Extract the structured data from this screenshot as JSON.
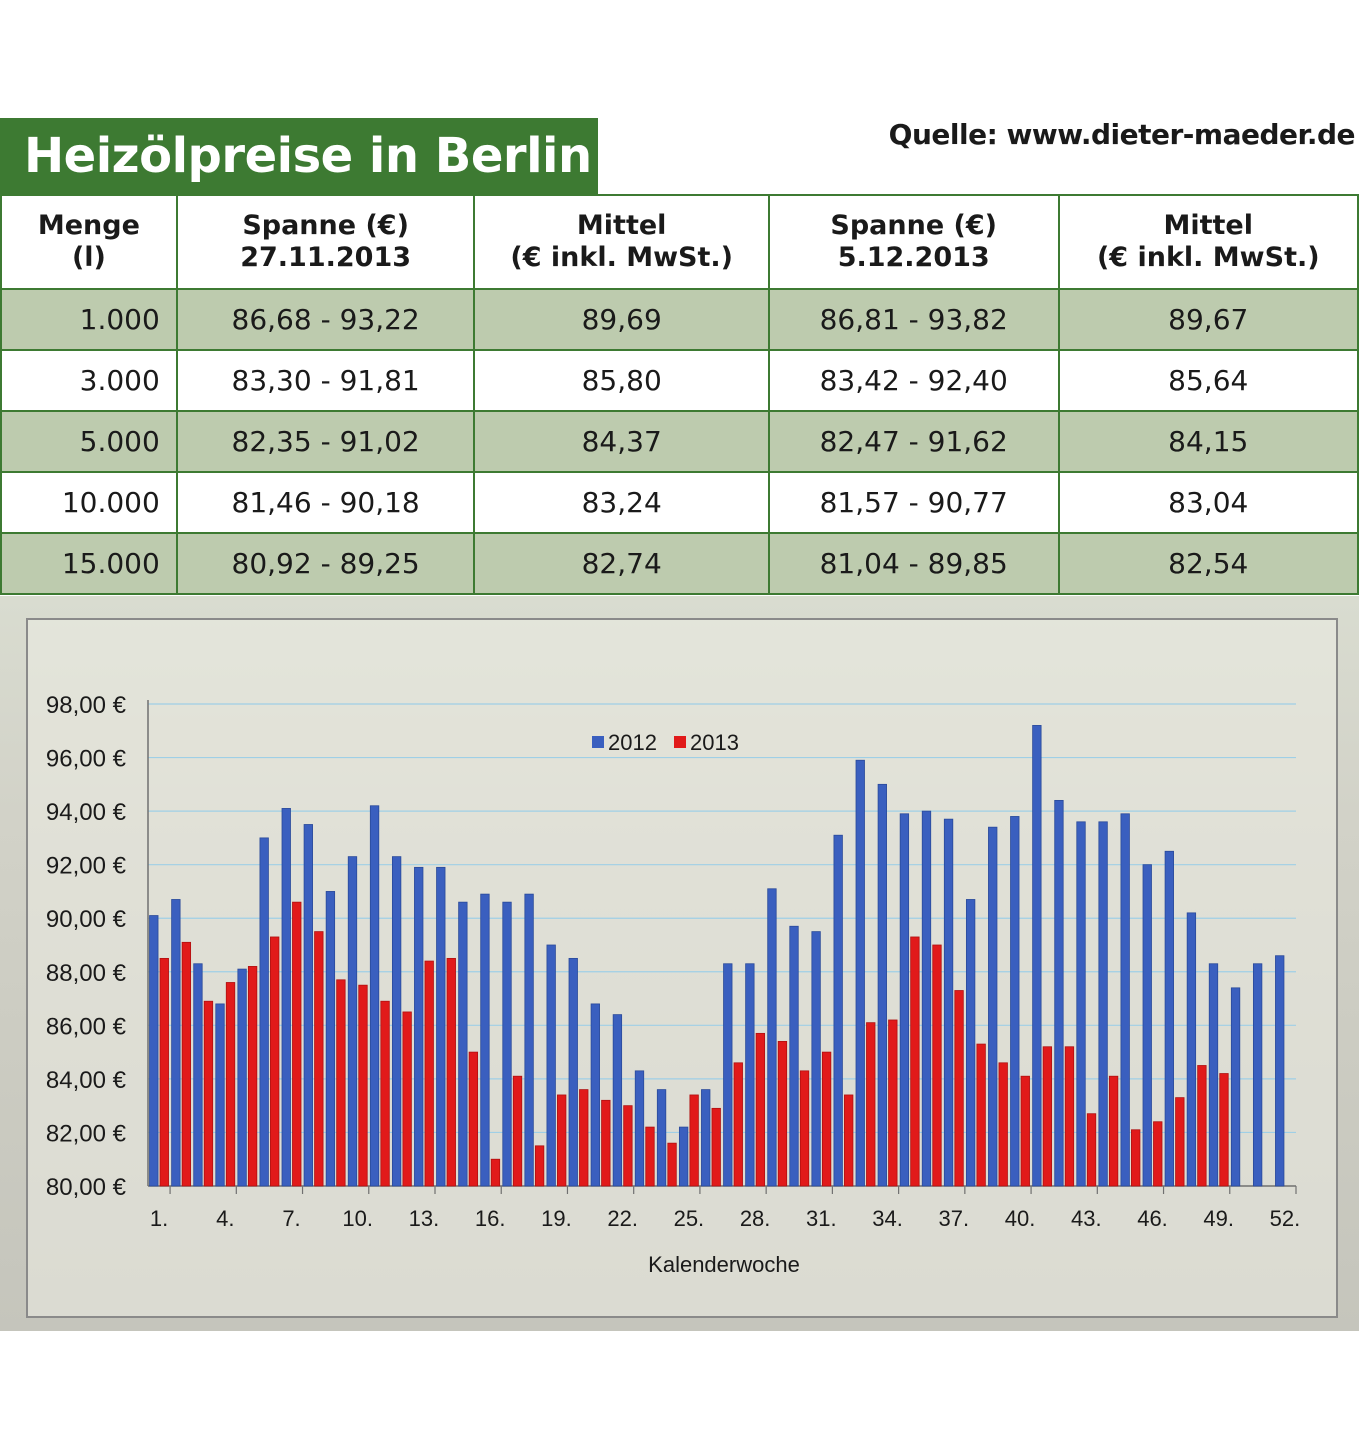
{
  "header": {
    "title": "Heizölpreise in Berlin",
    "source": "Quelle: www.dieter-maeder.de"
  },
  "table": {
    "columns": [
      "Menge\n(l)",
      "Spanne (€)\n27.11.2013",
      "Mittel\n(€ inkl. MwSt.)",
      "Spanne (€)\n5.12.2013",
      "Mittel\n(€ inkl. MwSt.)"
    ],
    "rows": [
      [
        "1.000",
        "86,68 - 93,22",
        "89,69",
        "86,81 - 93,82",
        "89,67"
      ],
      [
        "3.000",
        "83,30 - 91,81",
        "85,80",
        "83,42 - 92,40",
        "85,64"
      ],
      [
        "5.000",
        "82,35 - 91,02",
        "84,37",
        "82,47 - 91,62",
        "84,15"
      ],
      [
        "10.000",
        "81,46 - 90,18",
        "83,24",
        "81,57 - 90,77",
        "83,04"
      ],
      [
        "15.000",
        "80,92 - 89,25",
        "82,74",
        "81,04 - 89,85",
        "82,54"
      ]
    ]
  },
  "colors": {
    "title_bg": "#3d7a32",
    "row_shade": "#bdcbae",
    "series_2012": "#3a5fbf",
    "series_2013": "#e11a1a",
    "grid": "#9fcfe6"
  },
  "chart_data": {
    "type": "bar",
    "xlabel": "Kalenderwoche",
    "ylabel": "",
    "ylim": [
      80,
      98
    ],
    "yticks": [
      "80,00 €",
      "82,00 €",
      "84,00 €",
      "86,00 €",
      "88,00 €",
      "90,00 €",
      "92,00 €",
      "94,00 €",
      "96,00 €",
      "98,00 €"
    ],
    "xtick_labels": [
      "1.",
      "4.",
      "7.",
      "10.",
      "13.",
      "16.",
      "19.",
      "22.",
      "25.",
      "28.",
      "31.",
      "34.",
      "37.",
      "40.",
      "43.",
      "46.",
      "49.",
      "52."
    ],
    "grid": true,
    "legend": "top-center",
    "categories": [
      1,
      2,
      3,
      4,
      5,
      6,
      7,
      8,
      9,
      10,
      11,
      12,
      13,
      14,
      15,
      16,
      17,
      18,
      19,
      20,
      21,
      22,
      23,
      24,
      25,
      26,
      27,
      28,
      29,
      30,
      31,
      32,
      33,
      34,
      35,
      36,
      37,
      38,
      39,
      40,
      41,
      42,
      43,
      44,
      45,
      46,
      47,
      48,
      49,
      50,
      51,
      52
    ],
    "series": [
      {
        "name": "2012",
        "values": [
          90.1,
          90.7,
          88.3,
          86.8,
          88.1,
          93.0,
          94.1,
          93.5,
          91.0,
          92.3,
          94.2,
          92.3,
          91.9,
          91.9,
          90.6,
          90.9,
          90.6,
          90.9,
          89.0,
          88.5,
          86.8,
          86.4,
          84.3,
          83.6,
          82.2,
          83.6,
          88.3,
          88.3,
          91.1,
          89.7,
          89.5,
          93.1,
          95.9,
          95.0,
          93.9,
          94.0,
          93.7,
          90.7,
          93.4,
          93.8,
          97.2,
          94.4,
          93.6,
          93.6,
          93.9,
          92.0,
          92.5,
          90.2,
          88.3,
          87.4,
          88.3,
          88.6
        ]
      },
      {
        "name": "2013",
        "values": [
          88.5,
          89.1,
          86.9,
          87.6,
          88.2,
          89.3,
          90.6,
          89.5,
          87.7,
          87.5,
          86.9,
          86.5,
          88.4,
          88.5,
          85.0,
          81.0,
          84.1,
          81.5,
          83.4,
          83.6,
          83.2,
          83.0,
          82.2,
          81.6,
          83.4,
          82.9,
          84.6,
          85.7,
          85.4,
          84.3,
          85.0,
          83.4,
          86.1,
          86.2,
          89.3,
          89.0,
          87.3,
          85.3,
          84.6,
          84.1,
          85.2,
          85.2,
          82.7,
          84.1,
          82.1,
          82.4,
          83.3,
          84.5,
          84.2,
          null,
          null,
          null
        ]
      }
    ]
  }
}
